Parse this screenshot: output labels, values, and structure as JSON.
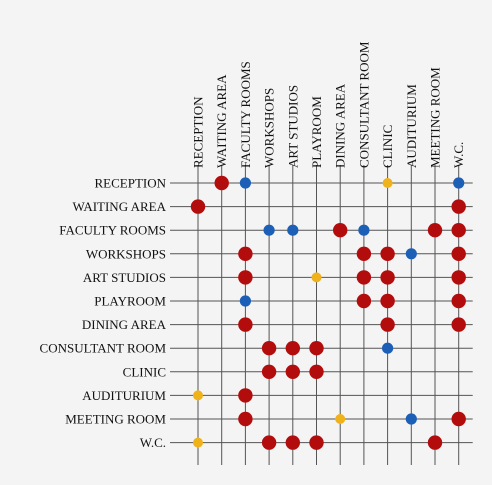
{
  "colors": {
    "background": "#f4f4f4",
    "grid": "#555555",
    "strong": "#b30c0c",
    "medium": "#1c5fb6",
    "weak": "#f0b21a"
  },
  "labels": [
    "RECEPTION",
    "WAITING AREA",
    "FACULTY ROOMS",
    "WORKSHOPS",
    "ART STUDIOS",
    "PLAYROOM",
    "DINING AREA",
    "CONSULTANT ROOM",
    "CLINIC",
    "AUDITURIUM",
    "MEETING ROOM",
    "W.C."
  ],
  "cells": [
    {
      "row": 0,
      "col": 1,
      "level": "strong"
    },
    {
      "row": 0,
      "col": 2,
      "level": "medium"
    },
    {
      "row": 0,
      "col": 8,
      "level": "weak"
    },
    {
      "row": 0,
      "col": 11,
      "level": "medium"
    },
    {
      "row": 1,
      "col": 0,
      "level": "strong"
    },
    {
      "row": 1,
      "col": 11,
      "level": "strong"
    },
    {
      "row": 2,
      "col": 3,
      "level": "medium"
    },
    {
      "row": 2,
      "col": 4,
      "level": "medium"
    },
    {
      "row": 2,
      "col": 6,
      "level": "strong"
    },
    {
      "row": 2,
      "col": 7,
      "level": "medium"
    },
    {
      "row": 2,
      "col": 10,
      "level": "strong"
    },
    {
      "row": 2,
      "col": 11,
      "level": "strong"
    },
    {
      "row": 3,
      "col": 2,
      "level": "strong"
    },
    {
      "row": 3,
      "col": 7,
      "level": "strong"
    },
    {
      "row": 3,
      "col": 8,
      "level": "strong"
    },
    {
      "row": 3,
      "col": 9,
      "level": "medium"
    },
    {
      "row": 3,
      "col": 11,
      "level": "strong"
    },
    {
      "row": 4,
      "col": 2,
      "level": "strong"
    },
    {
      "row": 4,
      "col": 5,
      "level": "weak"
    },
    {
      "row": 4,
      "col": 7,
      "level": "strong"
    },
    {
      "row": 4,
      "col": 8,
      "level": "strong"
    },
    {
      "row": 4,
      "col": 11,
      "level": "strong"
    },
    {
      "row": 5,
      "col": 2,
      "level": "medium"
    },
    {
      "row": 5,
      "col": 7,
      "level": "strong"
    },
    {
      "row": 5,
      "col": 8,
      "level": "strong"
    },
    {
      "row": 5,
      "col": 11,
      "level": "strong"
    },
    {
      "row": 6,
      "col": 2,
      "level": "strong"
    },
    {
      "row": 6,
      "col": 8,
      "level": "strong"
    },
    {
      "row": 6,
      "col": 11,
      "level": "strong"
    },
    {
      "row": 7,
      "col": 3,
      "level": "strong"
    },
    {
      "row": 7,
      "col": 4,
      "level": "strong"
    },
    {
      "row": 7,
      "col": 5,
      "level": "strong"
    },
    {
      "row": 7,
      "col": 8,
      "level": "medium"
    },
    {
      "row": 8,
      "col": 3,
      "level": "strong"
    },
    {
      "row": 8,
      "col": 4,
      "level": "strong"
    },
    {
      "row": 8,
      "col": 5,
      "level": "strong"
    },
    {
      "row": 9,
      "col": 0,
      "level": "weak"
    },
    {
      "row": 9,
      "col": 2,
      "level": "strong"
    },
    {
      "row": 10,
      "col": 2,
      "level": "strong"
    },
    {
      "row": 10,
      "col": 6,
      "level": "weak"
    },
    {
      "row": 10,
      "col": 9,
      "level": "medium"
    },
    {
      "row": 10,
      "col": 11,
      "level": "strong"
    },
    {
      "row": 11,
      "col": 0,
      "level": "weak"
    },
    {
      "row": 11,
      "col": 3,
      "level": "strong"
    },
    {
      "row": 11,
      "col": 4,
      "level": "strong"
    },
    {
      "row": 11,
      "col": 5,
      "level": "strong"
    },
    {
      "row": 11,
      "col": 10,
      "level": "strong"
    }
  ]
}
